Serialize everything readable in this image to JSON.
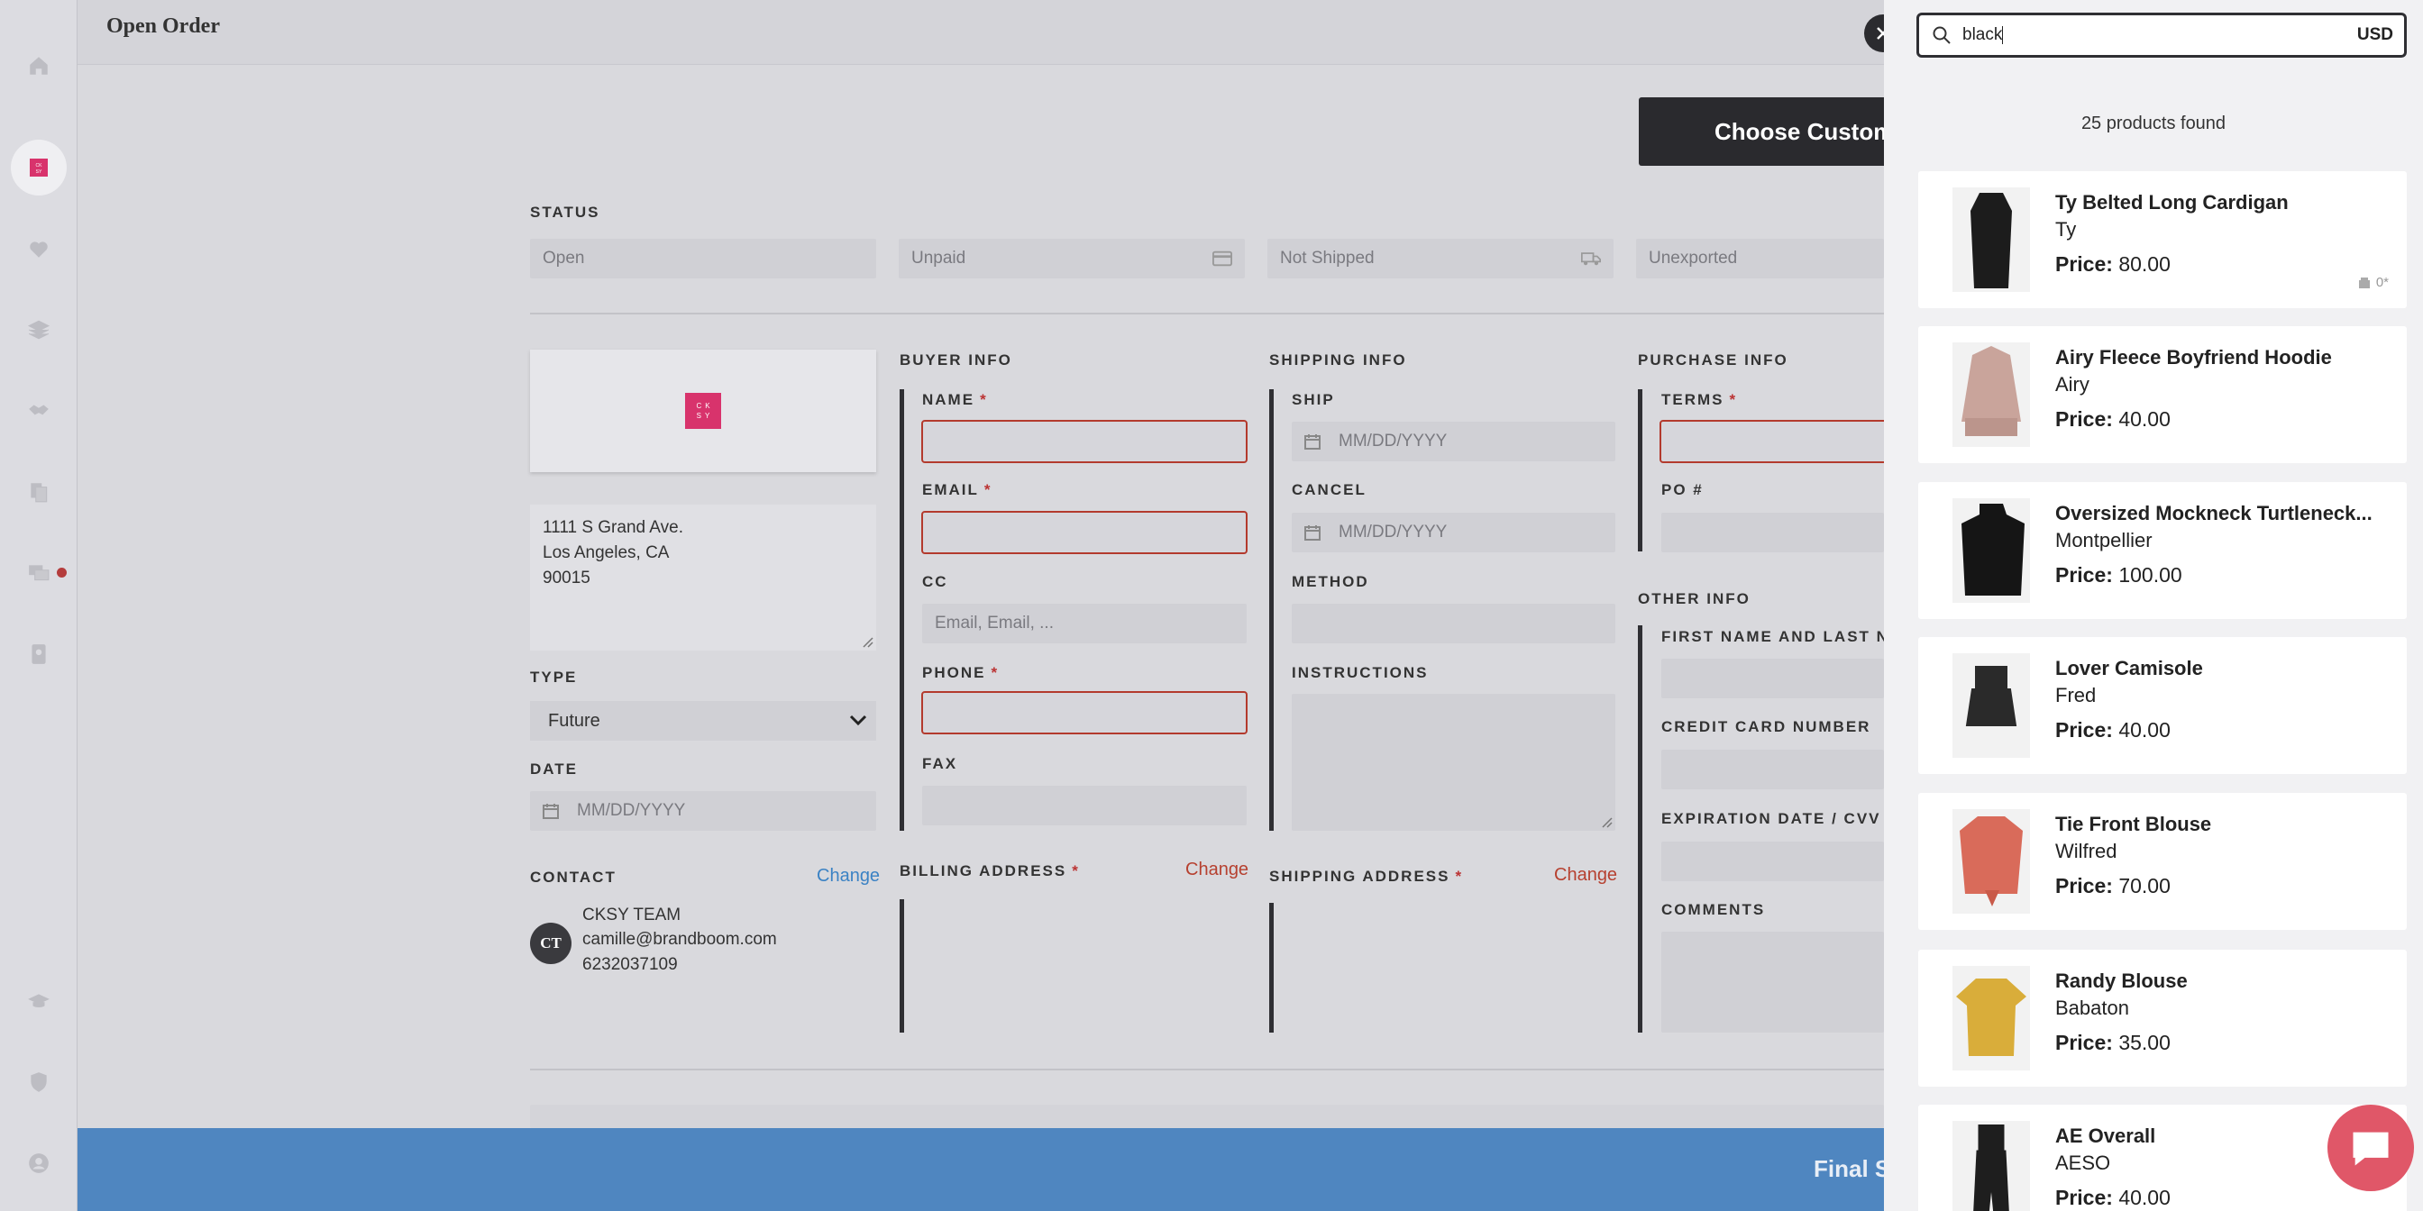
{
  "page": {
    "title": "Open Order"
  },
  "header": {
    "choose_customer": "Choose Custom"
  },
  "status": {
    "label": "STATUS",
    "order": "Open",
    "payment": "Unpaid",
    "shipping": "Not Shipped",
    "export": "Unexported"
  },
  "customer": {
    "logo_text": "C K\nS Y",
    "address_lines": [
      "1111 S Grand Ave.",
      "Los Angeles, CA",
      "90015"
    ],
    "type_label": "TYPE",
    "type_value": "Future",
    "date_label": "DATE",
    "date_placeholder": "MM/DD/YYYY",
    "contact_label": "CONTACT",
    "contact_change": "Change",
    "contact_initials": "CT",
    "contact_name": "CKSY TEAM",
    "contact_email": "camille@brandboom.com",
    "contact_phone": "6232037109"
  },
  "buyer": {
    "section": "BUYER INFO",
    "name": "NAME",
    "email": "EMAIL",
    "cc": "CC",
    "cc_placeholder": "Email, Email, ...",
    "phone": "PHONE",
    "fax": "FAX",
    "billing": "BILLING ADDRESS",
    "billing_change": "Change"
  },
  "shipping": {
    "section": "SHIPPING INFO",
    "ship": "SHIP",
    "ship_placeholder": "MM/DD/YYYY",
    "cancel": "CANCEL",
    "cancel_placeholder": "MM/DD/YYYY",
    "method": "METHOD",
    "instructions": "INSTRUCTIONS",
    "address": "SHIPPING ADDRESS",
    "address_change": "Change"
  },
  "purchase": {
    "section": "PURCHASE INFO",
    "terms": "TERMS",
    "po": "PO #",
    "other": "OTHER INFO",
    "first_last": "FIRST NAME AND LAST NA",
    "cc_number": "CREDIT CARD NUMBER",
    "exp": "EXPIRATION DATE / CVV",
    "comments": "COMMENTS"
  },
  "footer": {
    "final": "Final S"
  },
  "required_mark": "*",
  "panel": {
    "search_value": "black",
    "currency": "USD",
    "found_text": "25 products found",
    "products": [
      {
        "name": "Ty Belted Long Cardigan",
        "brand": "Ty",
        "price_label": "Price:",
        "price": "80.00",
        "stock": "0*",
        "color": "#1c1c1c"
      },
      {
        "name": "Airy Fleece Boyfriend Hoodie",
        "brand": "Airy",
        "price_label": "Price:",
        "price": "40.00",
        "color": "#c9a49b"
      },
      {
        "name": "Oversized Mockneck Turtleneck...",
        "brand": "Montpellier",
        "price_label": "Price:",
        "price": "100.00",
        "color": "#151515"
      },
      {
        "name": "Lover Camisole",
        "brand": "Fred",
        "price_label": "Price:",
        "price": "40.00",
        "color": "#2a2a2a"
      },
      {
        "name": "Tie Front Blouse",
        "brand": "Wilfred",
        "price_label": "Price:",
        "price": "70.00",
        "color": "#d96b5a"
      },
      {
        "name": "Randy Blouse",
        "brand": "Babaton",
        "price_label": "Price:",
        "price": "35.00",
        "color": "#d9ad3a"
      },
      {
        "name": "AE Overall",
        "brand": "AESO",
        "price_label": "Price:",
        "price": "40.00",
        "color": "#1e1e1e"
      }
    ]
  },
  "colors": {
    "accent_red": "#b33a2d",
    "brand_pink": "#d8336c",
    "footer_blue": "#4f86c0",
    "chat_pink": "#e05768"
  }
}
